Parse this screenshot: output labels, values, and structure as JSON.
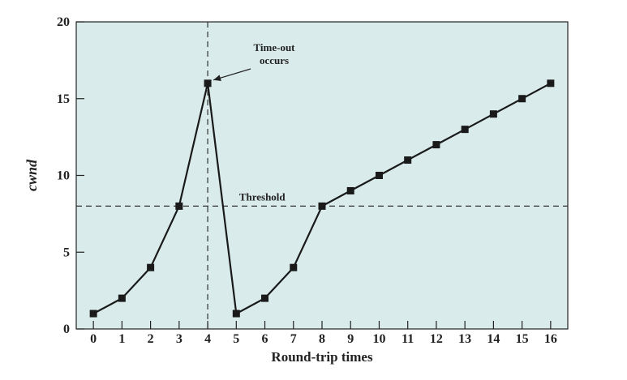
{
  "chart_data": {
    "type": "line",
    "xlabel": "Round-trip times",
    "ylabel": "cwnd",
    "xlim": [
      -0.6,
      16.6
    ],
    "ylim": [
      0,
      20
    ],
    "x_ticks": [
      0,
      1,
      2,
      3,
      4,
      5,
      6,
      7,
      8,
      9,
      10,
      11,
      12,
      13,
      14,
      15,
      16
    ],
    "y_ticks": [
      0,
      5,
      10,
      15,
      20
    ],
    "grid": false,
    "series": [
      {
        "x": [
          0,
          1,
          2,
          3,
          4,
          5,
          6,
          7,
          8,
          9,
          10,
          11,
          12,
          13,
          14,
          15,
          16
        ],
        "y": [
          1,
          2,
          4,
          8,
          16,
          1,
          2,
          4,
          8,
          9,
          10,
          11,
          12,
          13,
          14,
          15,
          16
        ],
        "color": "#1a1a1a",
        "marker": "square"
      }
    ],
    "threshold": {
      "label": "Threshold",
      "y": 8
    },
    "timeout": {
      "label_line1": "Time-out",
      "label_line2": "occurs",
      "x": 4
    },
    "background_color": "#d9ebeb"
  }
}
